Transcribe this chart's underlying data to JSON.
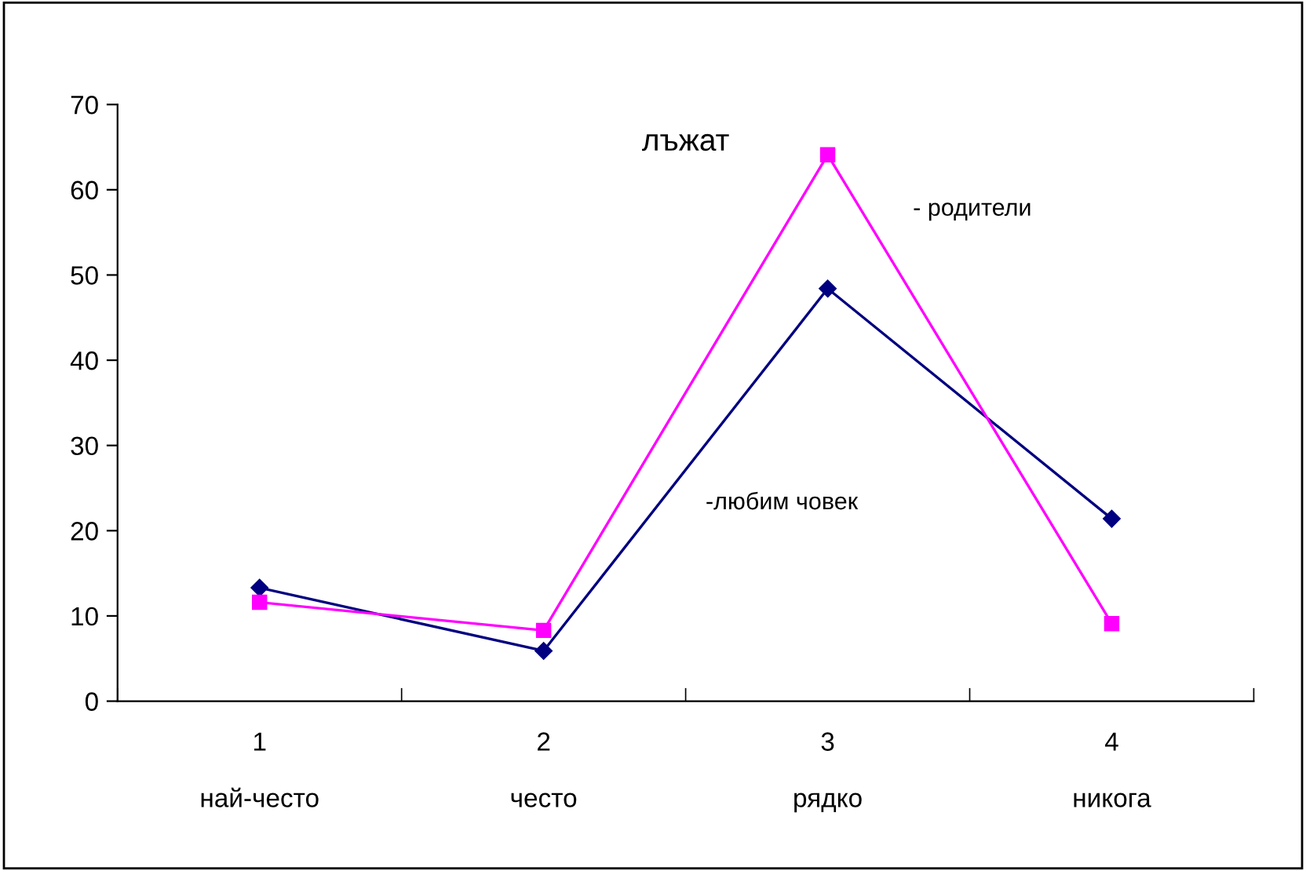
{
  "chart_data": {
    "type": "line",
    "title": "лъжат",
    "categories": [
      "1\n\nнай-често",
      "2\n\nчесто",
      "3\n\nрядко",
      "4\n\nникога"
    ],
    "series": [
      {
        "name": "-любим човек",
        "color": "#000080",
        "marker": "diamond",
        "values": [
          13.3,
          5.9,
          48.4,
          21.4
        ]
      },
      {
        "name": "- родители",
        "color": "#ff00ff",
        "marker": "square",
        "values": [
          11.6,
          8.3,
          64.1,
          9.1
        ]
      }
    ],
    "ylim": [
      0,
      70
    ],
    "yticks": [
      0,
      10,
      20,
      30,
      40,
      50,
      60,
      70
    ],
    "grid": false,
    "legend": false
  }
}
